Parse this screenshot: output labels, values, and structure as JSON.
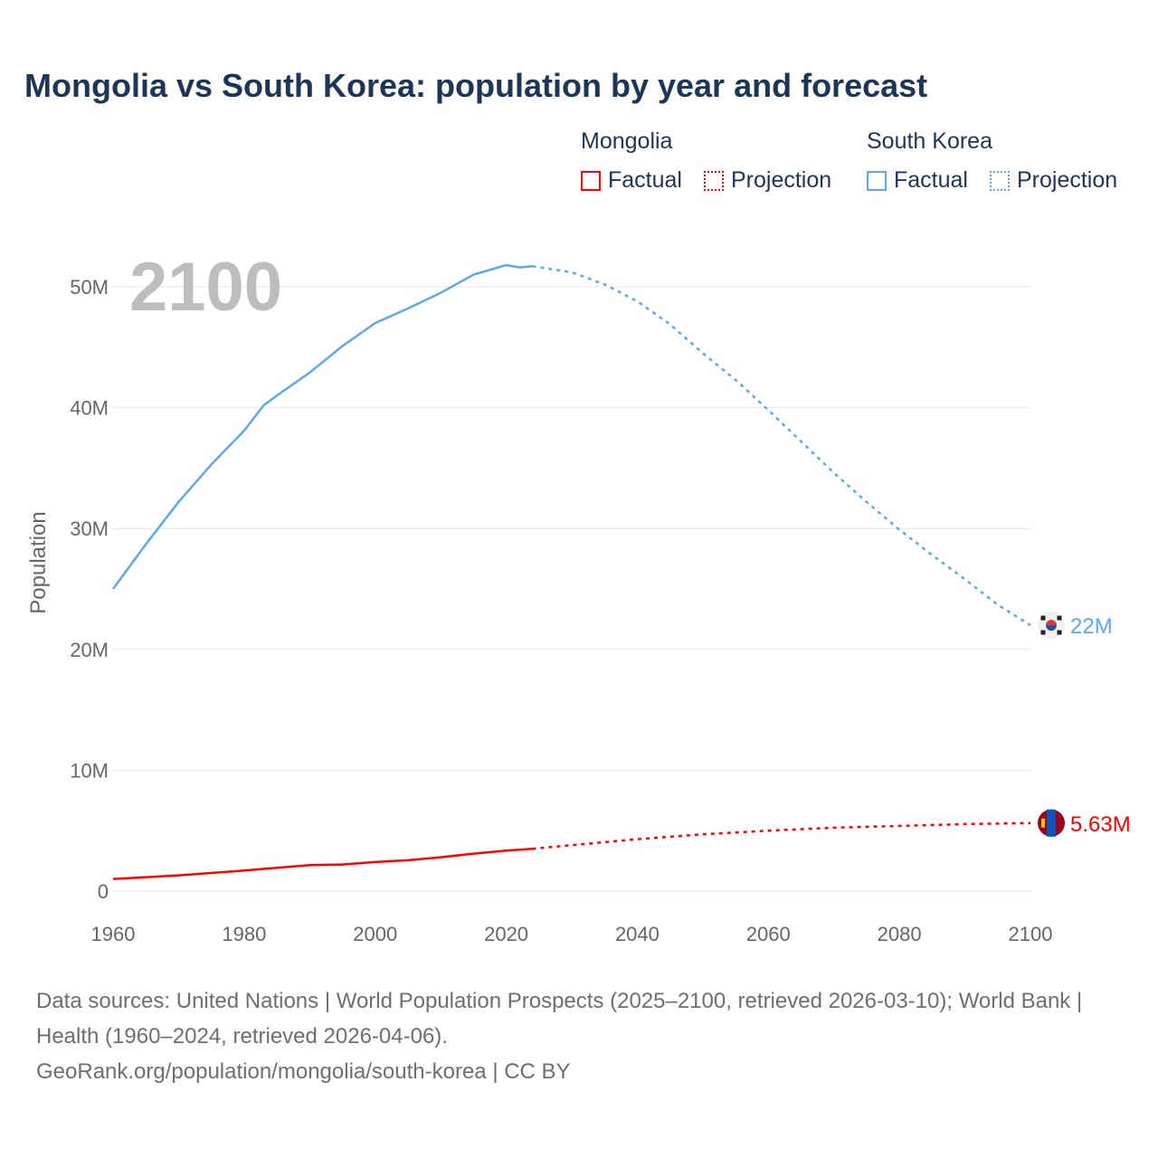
{
  "chart_data": {
    "type": "line",
    "title": "Mongolia vs South Korea: population by year and forecast",
    "xlabel": "",
    "ylabel": "Population",
    "xlim": [
      1960,
      2100
    ],
    "ylim": [
      0,
      50000000
    ],
    "x_ticks": [
      1960,
      1980,
      2000,
      2020,
      2040,
      2060,
      2080,
      2100
    ],
    "x_tick_labels": [
      "1960",
      "1980",
      "2000",
      "2020",
      "2040",
      "2060",
      "2080",
      "2100"
    ],
    "y_ticks": [
      0,
      10000000,
      20000000,
      30000000,
      40000000,
      50000000
    ],
    "y_tick_labels": [
      "0",
      "10M",
      "20M",
      "30M",
      "40M",
      "50M"
    ],
    "grid": true,
    "year_label": "2100",
    "legend": {
      "placement": "top-right",
      "groups": [
        {
          "name": "Mongolia",
          "factual": "Factual",
          "projection": "Projection",
          "color": "#ff0000"
        },
        {
          "name": "South Korea",
          "factual": "Factual",
          "projection": "Projection",
          "color": "#5ea8e8"
        }
      ]
    },
    "series": [
      {
        "name": "South Korea",
        "color": "#5ea8e8",
        "end_label": "22M",
        "flag": "south-korea",
        "factual": {
          "x": [
            1960,
            1965,
            1970,
            1975,
            1980,
            1983,
            1985,
            1990,
            1995,
            2000,
            2005,
            2010,
            2015,
            2020,
            2022,
            2024
          ],
          "y": [
            25.0,
            28.7,
            32.2,
            35.3,
            38.1,
            40.2,
            41.0,
            42.9,
            45.1,
            47.0,
            48.2,
            49.5,
            51.0,
            51.8,
            51.6,
            51.7
          ]
        },
        "projection": {
          "x": [
            2024,
            2030,
            2035,
            2040,
            2045,
            2050,
            2055,
            2060,
            2065,
            2070,
            2075,
            2080,
            2085,
            2090,
            2095,
            2100
          ],
          "y": [
            51.7,
            51.2,
            50.2,
            48.8,
            46.9,
            44.5,
            42.3,
            39.8,
            37.2,
            34.6,
            32.2,
            29.9,
            27.8,
            25.8,
            23.7,
            22.0
          ]
        },
        "unit": "millions"
      },
      {
        "name": "Mongolia",
        "color": "#ff0000",
        "end_label": "5.63M",
        "flag": "mongolia",
        "factual": {
          "x": [
            1960,
            1970,
            1980,
            1989,
            1990,
            1995,
            2000,
            2005,
            2010,
            2015,
            2020,
            2024
          ],
          "y": [
            1.0,
            1.3,
            1.7,
            2.1,
            2.15,
            2.2,
            2.4,
            2.55,
            2.8,
            3.1,
            3.35,
            3.5
          ]
        },
        "projection": {
          "x": [
            2024,
            2030,
            2040,
            2050,
            2060,
            2070,
            2080,
            2090,
            2100
          ],
          "y": [
            3.5,
            3.8,
            4.3,
            4.7,
            5.0,
            5.25,
            5.4,
            5.55,
            5.63
          ]
        },
        "unit": "millions"
      }
    ]
  },
  "source": {
    "line1": "Data sources: United Nations | World Population Prospects (2025–2100, retrieved 2026-03-10); World Bank | Health (1960–2024, retrieved 2026-04-06).",
    "line2": "GeoRank.org/population/mongolia/south-korea | CC BY"
  }
}
